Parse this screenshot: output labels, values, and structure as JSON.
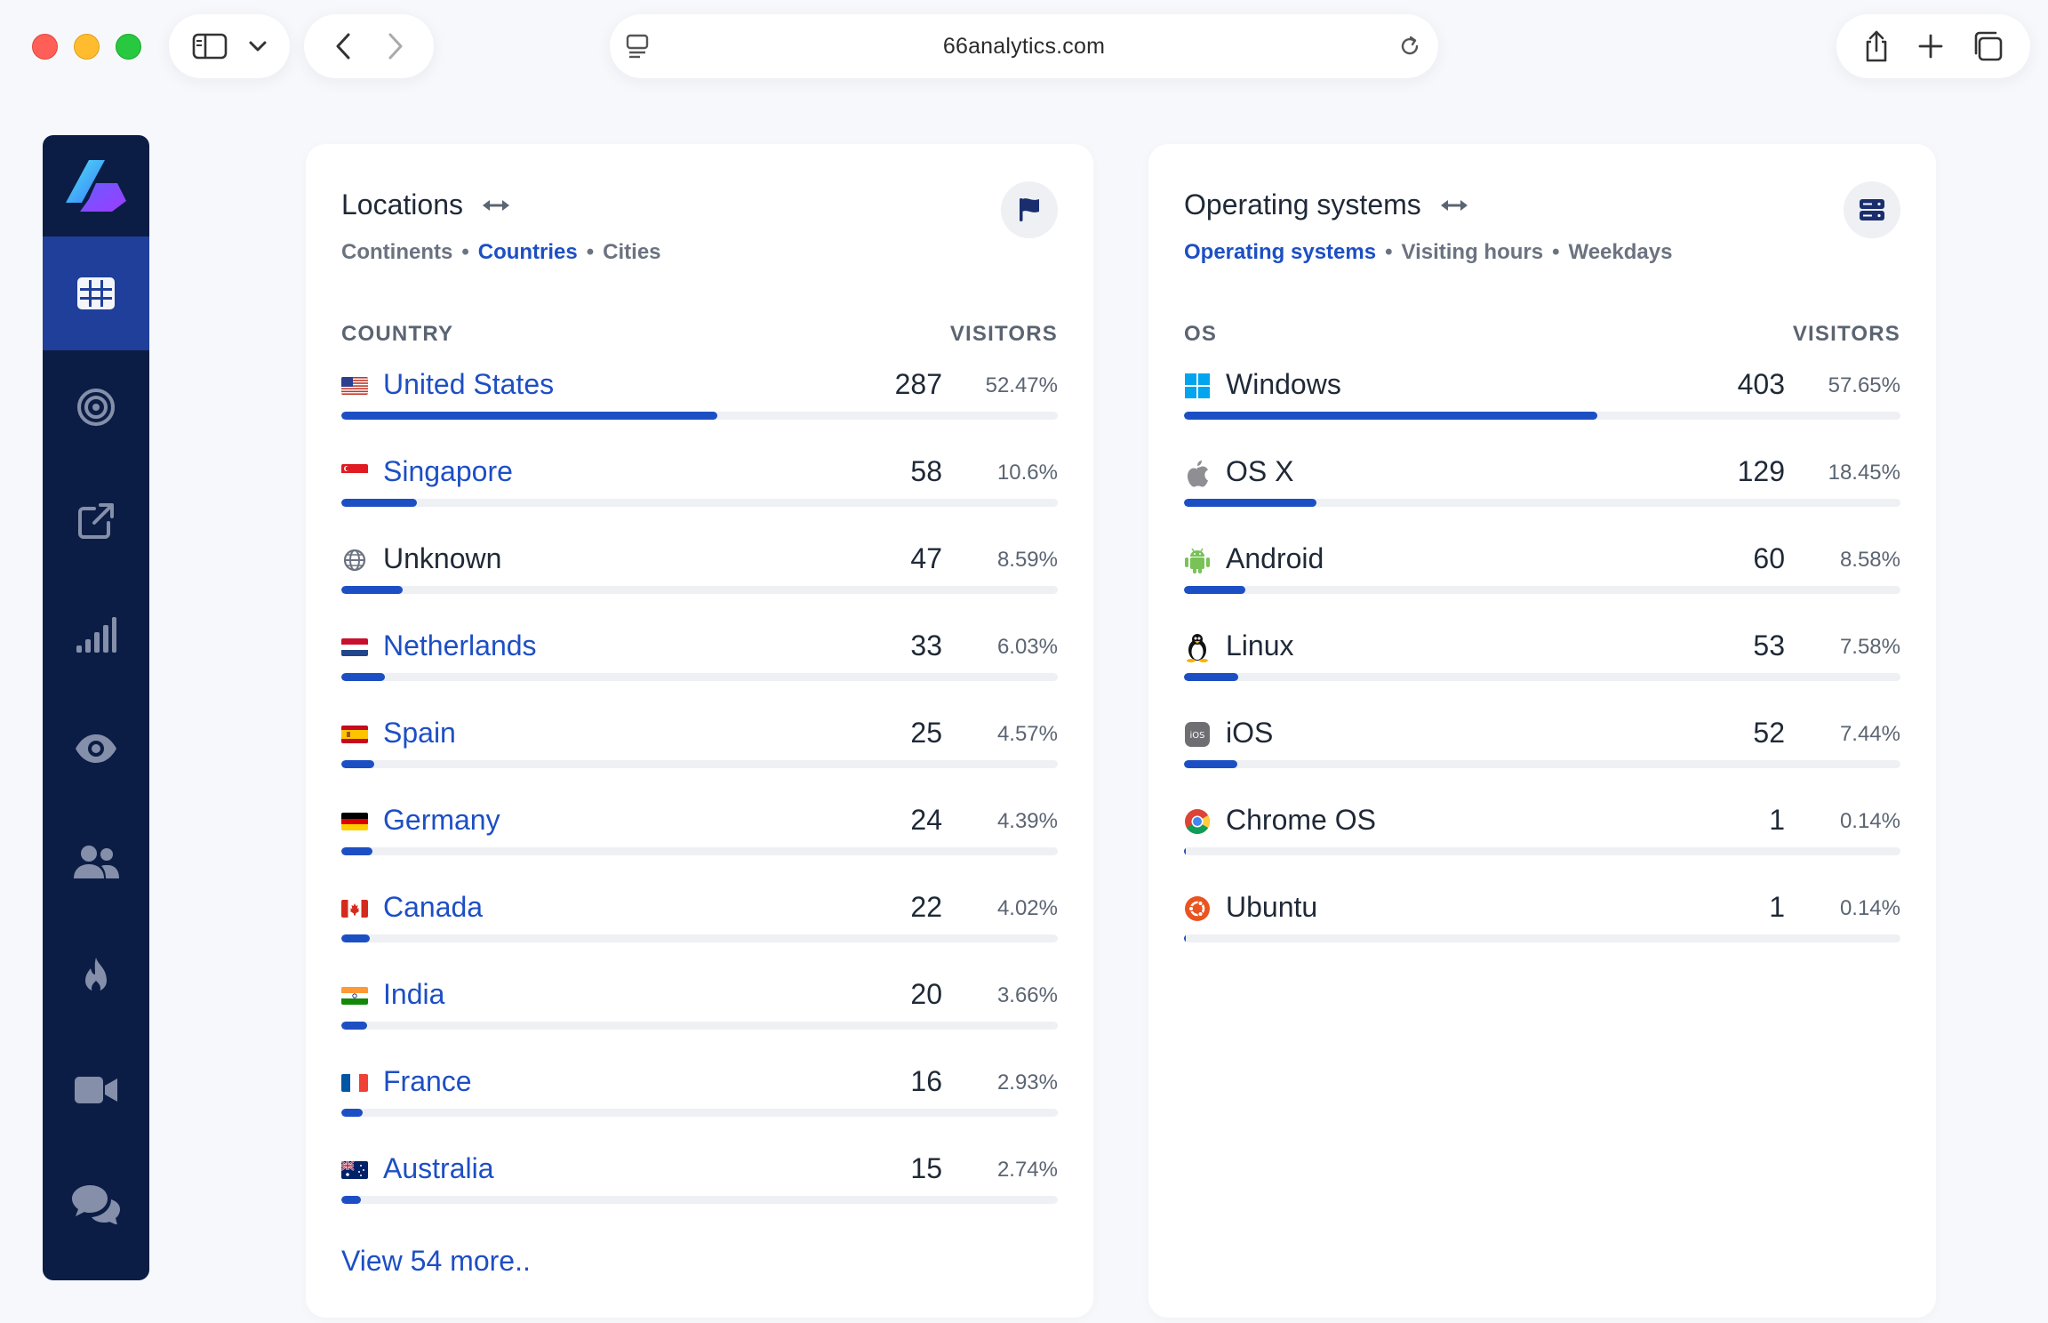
{
  "browser": {
    "url": "66analytics.com",
    "icons": [
      "sidebar-toggle-icon",
      "chevron-down-icon",
      "back-icon",
      "forward-icon",
      "page-icon",
      "reload-icon",
      "share-icon",
      "plus-icon",
      "tabs-icon"
    ]
  },
  "sidebar": {
    "items": [
      {
        "name": "dashboard",
        "icon": "grid-icon",
        "active": true
      },
      {
        "name": "goals",
        "icon": "target-icon",
        "active": false
      },
      {
        "name": "referrers",
        "icon": "external-link-icon",
        "active": false
      },
      {
        "name": "stats",
        "icon": "signal-bars-icon",
        "active": false
      },
      {
        "name": "realtime",
        "icon": "eye-icon",
        "active": false
      },
      {
        "name": "users",
        "icon": "users-icon",
        "active": false
      },
      {
        "name": "heatmaps",
        "icon": "fire-icon",
        "active": false
      },
      {
        "name": "recordings",
        "icon": "video-icon",
        "active": false
      },
      {
        "name": "feedback",
        "icon": "chat-icon",
        "active": false
      }
    ]
  },
  "locations": {
    "title": "Locations",
    "tabs": [
      {
        "label": "Continents",
        "active": false
      },
      {
        "label": "Countries",
        "active": true
      },
      {
        "label": "Cities",
        "active": false
      }
    ],
    "col_left": "COUNTRY",
    "col_right": "VISITORS",
    "rows": [
      {
        "label": "United States",
        "count": "287",
        "pct": "52.47%",
        "fraction": 0.5247,
        "link": true,
        "icon": "us-flag"
      },
      {
        "label": "Singapore",
        "count": "58",
        "pct": "10.6%",
        "fraction": 0.106,
        "link": true,
        "icon": "sg-flag"
      },
      {
        "label": "Unknown",
        "count": "47",
        "pct": "8.59%",
        "fraction": 0.0859,
        "link": false,
        "icon": "globe-icon"
      },
      {
        "label": "Netherlands",
        "count": "33",
        "pct": "6.03%",
        "fraction": 0.0603,
        "link": true,
        "icon": "nl-flag"
      },
      {
        "label": "Spain",
        "count": "25",
        "pct": "4.57%",
        "fraction": 0.0457,
        "link": true,
        "icon": "es-flag"
      },
      {
        "label": "Germany",
        "count": "24",
        "pct": "4.39%",
        "fraction": 0.0439,
        "link": true,
        "icon": "de-flag"
      },
      {
        "label": "Canada",
        "count": "22",
        "pct": "4.02%",
        "fraction": 0.0402,
        "link": true,
        "icon": "ca-flag"
      },
      {
        "label": "India",
        "count": "20",
        "pct": "3.66%",
        "fraction": 0.0366,
        "link": true,
        "icon": "in-flag"
      },
      {
        "label": "France",
        "count": "16",
        "pct": "2.93%",
        "fraction": 0.0293,
        "link": true,
        "icon": "fr-flag"
      },
      {
        "label": "Australia",
        "count": "15",
        "pct": "2.74%",
        "fraction": 0.0274,
        "link": true,
        "icon": "au-flag"
      }
    ],
    "view_more": "View 54 more.."
  },
  "os": {
    "title": "Operating systems",
    "tabs": [
      {
        "label": "Operating systems",
        "active": true
      },
      {
        "label": "Visiting hours",
        "active": false
      },
      {
        "label": "Weekdays",
        "active": false
      }
    ],
    "col_left": "OS",
    "col_right": "VISITORS",
    "rows": [
      {
        "label": "Windows",
        "count": "403",
        "pct": "57.65%",
        "fraction": 0.5765,
        "icon": "windows-icon"
      },
      {
        "label": "OS X",
        "count": "129",
        "pct": "18.45%",
        "fraction": 0.1845,
        "icon": "apple-icon"
      },
      {
        "label": "Android",
        "count": "60",
        "pct": "8.58%",
        "fraction": 0.0858,
        "icon": "android-icon"
      },
      {
        "label": "Linux",
        "count": "53",
        "pct": "7.58%",
        "fraction": 0.0758,
        "icon": "linux-icon"
      },
      {
        "label": "iOS",
        "count": "52",
        "pct": "7.44%",
        "fraction": 0.0744,
        "icon": "ios-icon"
      },
      {
        "label": "Chrome OS",
        "count": "1",
        "pct": "0.14%",
        "fraction": 0.0014,
        "icon": "chrome-icon"
      },
      {
        "label": "Ubuntu",
        "count": "1",
        "pct": "0.14%",
        "fraction": 0.0014,
        "icon": "ubuntu-icon"
      }
    ]
  },
  "colors": {
    "accent": "#1d4fc4",
    "sidebar_bg": "#0c1d45",
    "sidebar_active": "#1f3f9a",
    "bar_track": "#eef0f4"
  }
}
